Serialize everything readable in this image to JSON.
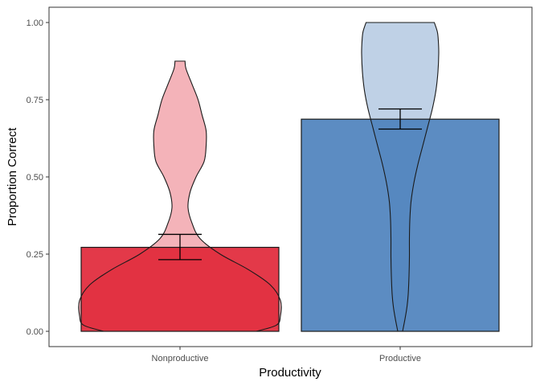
{
  "chart_data": {
    "type": "bar",
    "overlay": "violin",
    "xlabel": "Productivity",
    "ylabel": "Proportion Correct",
    "categories": [
      "Nonproductive",
      "Productive"
    ],
    "values": [
      0.272,
      0.687
    ],
    "error_bars": [
      {
        "low": 0.232,
        "high": 0.314
      },
      {
        "low": 0.655,
        "high": 0.72
      }
    ],
    "ylim": [
      0.0,
      1.0
    ],
    "yticks": [
      0.0,
      0.25,
      0.5,
      0.75,
      1.0
    ],
    "ytick_labels": [
      "0.00",
      "0.25",
      "0.50",
      "0.75",
      "1.00"
    ],
    "grid": false,
    "legend": "none",
    "colors": {
      "nonproductive_bar": "#e02435",
      "productive_bar": "#4a80bb",
      "nonproductive_violin": "#f4b3b9",
      "productive_violin": "#bfd1e6",
      "outline": "#1a1a1a",
      "tick_text": "#4d4d4d",
      "frame": "#333333"
    },
    "violins": [
      {
        "category": "Nonproductive",
        "min": 0.0,
        "max": 0.875,
        "profile": [
          {
            "y": 0.0,
            "w": 0.38
          },
          {
            "y": 0.02,
            "w": 0.48
          },
          {
            "y": 0.05,
            "w": 0.5
          },
          {
            "y": 0.1,
            "w": 0.5
          },
          {
            "y": 0.15,
            "w": 0.45
          },
          {
            "y": 0.2,
            "w": 0.34
          },
          {
            "y": 0.25,
            "w": 0.2
          },
          {
            "y": 0.3,
            "w": 0.1
          },
          {
            "y": 0.35,
            "w": 0.06
          },
          {
            "y": 0.4,
            "w": 0.04
          },
          {
            "y": 0.45,
            "w": 0.05
          },
          {
            "y": 0.5,
            "w": 0.08
          },
          {
            "y": 0.55,
            "w": 0.12
          },
          {
            "y": 0.6,
            "w": 0.13
          },
          {
            "y": 0.65,
            "w": 0.13
          },
          {
            "y": 0.7,
            "w": 0.11
          },
          {
            "y": 0.75,
            "w": 0.09
          },
          {
            "y": 0.8,
            "w": 0.06
          },
          {
            "y": 0.85,
            "w": 0.03
          },
          {
            "y": 0.875,
            "w": 0.025
          }
        ]
      },
      {
        "category": "Productive",
        "min": 0.0,
        "max": 1.0,
        "profile": [
          {
            "y": 0.0,
            "w": 0.012
          },
          {
            "y": 0.04,
            "w": 0.024
          },
          {
            "y": 0.08,
            "w": 0.034
          },
          {
            "y": 0.12,
            "w": 0.04
          },
          {
            "y": 0.18,
            "w": 0.044
          },
          {
            "y": 0.24,
            "w": 0.046
          },
          {
            "y": 0.3,
            "w": 0.046
          },
          {
            "y": 0.36,
            "w": 0.048
          },
          {
            "y": 0.42,
            "w": 0.054
          },
          {
            "y": 0.48,
            "w": 0.068
          },
          {
            "y": 0.54,
            "w": 0.088
          },
          {
            "y": 0.6,
            "w": 0.112
          },
          {
            "y": 0.66,
            "w": 0.136
          },
          {
            "y": 0.72,
            "w": 0.16
          },
          {
            "y": 0.78,
            "w": 0.178
          },
          {
            "y": 0.84,
            "w": 0.188
          },
          {
            "y": 0.9,
            "w": 0.192
          },
          {
            "y": 0.94,
            "w": 0.19
          },
          {
            "y": 0.97,
            "w": 0.185
          },
          {
            "y": 1.0,
            "w": 0.17
          }
        ]
      }
    ]
  }
}
